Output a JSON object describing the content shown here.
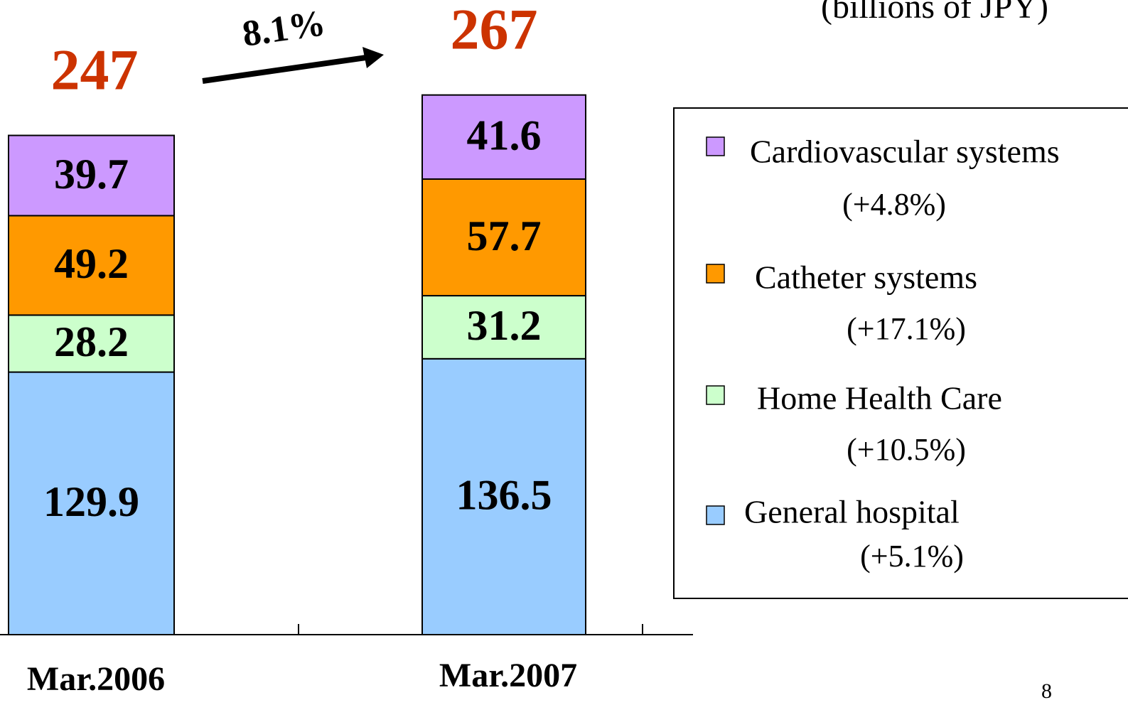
{
  "chart_data": {
    "type": "stacked_bar",
    "unit_note": "(billions of JPY)",
    "categories": [
      "Mar.2006",
      "Mar.2007"
    ],
    "series": [
      {
        "name": "General hospital",
        "color": "#99ccff",
        "values": [
          129.9,
          136.5
        ],
        "growth": "(+5.1%)"
      },
      {
        "name": "Home Health Care",
        "color": "#ccffcc",
        "values": [
          28.2,
          31.2
        ],
        "growth": "(+10.5%)"
      },
      {
        "name": "Catheter systems",
        "color": "#ff9900",
        "values": [
          49.2,
          57.7
        ],
        "growth": "(+17.1%)"
      },
      {
        "name": "Cardiovascular systems",
        "color": "#cc99ff",
        "values": [
          39.7,
          41.6
        ],
        "growth": "(+4.8%)"
      }
    ],
    "totals": [
      247,
      267
    ],
    "totals_color": "#cc3300",
    "growth_annotation": "8.1%",
    "ylim": [
      0,
      314
    ],
    "page_number": "8"
  }
}
